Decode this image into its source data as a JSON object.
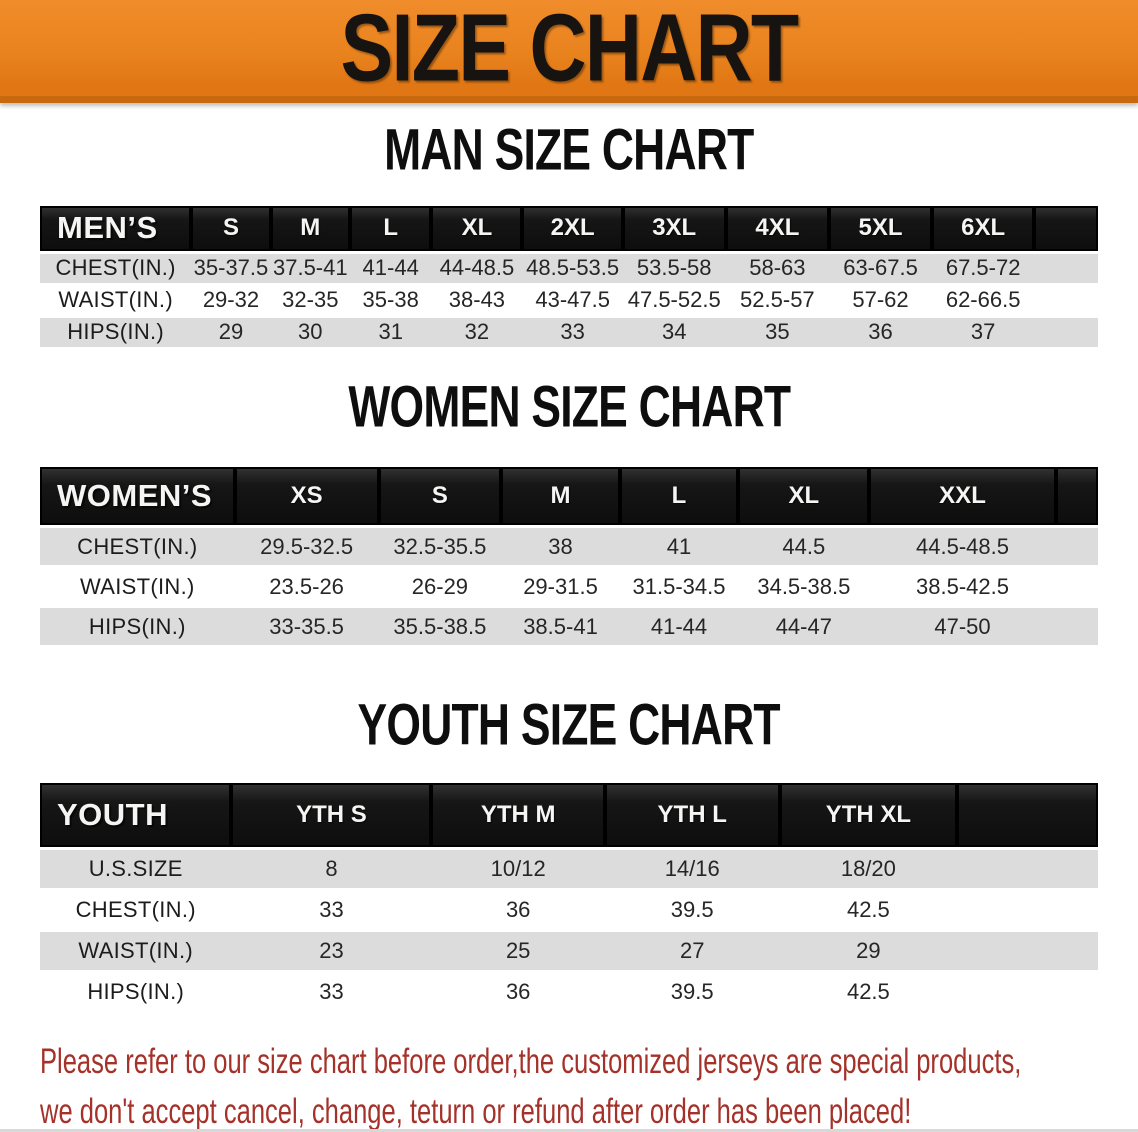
{
  "banner": {
    "title": "SIZE CHART"
  },
  "colors": {
    "accent_orange": "#E9831E",
    "accent_orange_dark": "#C8690F",
    "header_bar_black": "#151515",
    "row_stripe_gray": "#DCDCDC",
    "notice_red": "#A5322A"
  },
  "sections": [
    {
      "heading": "MAN SIZE CHART",
      "header_label": "MEN’S",
      "sizes": [
        "S",
        "M",
        "L",
        "XL",
        "2XL",
        "3XL",
        "4XL",
        "5XL",
        "6XL"
      ],
      "rows": [
        {
          "label": "CHEST(IN.)",
          "values": [
            "35-37.5",
            "37.5-41",
            "41-44",
            "44-48.5",
            "48.5-53.5",
            "53.5-58",
            "58-63",
            "63-67.5",
            "67.5-72"
          ]
        },
        {
          "label": "WAIST(IN.)",
          "values": [
            "29-32",
            "32-35",
            "35-38",
            "38-43",
            "43-47.5",
            "47.5-52.5",
            "52.5-57",
            "57-62",
            "62-66.5"
          ]
        },
        {
          "label": "HIPS(IN.)",
          "values": [
            "29",
            "30",
            "31",
            "32",
            "33",
            "34",
            "35",
            "36",
            "37"
          ]
        }
      ]
    },
    {
      "heading": "WOMEN SIZE CHART",
      "header_label": "WOMEN’S",
      "sizes": [
        "XS",
        "S",
        "M",
        "L",
        "XL",
        "XXL"
      ],
      "rows": [
        {
          "label": "CHEST(IN.)",
          "values": [
            "29.5-32.5",
            "32.5-35.5",
            "38",
            "41",
            "44.5",
            "44.5-48.5"
          ]
        },
        {
          "label": "WAIST(IN.)",
          "values": [
            "23.5-26",
            "26-29",
            "29-31.5",
            "31.5-34.5",
            "34.5-38.5",
            "38.5-42.5"
          ]
        },
        {
          "label": "HIPS(IN.)",
          "values": [
            "33-35.5",
            "35.5-38.5",
            "38.5-41",
            "41-44",
            "44-47",
            "47-50"
          ]
        }
      ]
    },
    {
      "heading": "YOUTH SIZE CHART",
      "header_label": "YOUTH",
      "sizes": [
        "YTH S",
        "YTH M",
        "YTH L",
        "YTH XL"
      ],
      "rows": [
        {
          "label": "U.S.SIZE",
          "values": [
            "8",
            "10/12",
            "14/16",
            "18/20"
          ]
        },
        {
          "label": "CHEST(IN.)",
          "values": [
            "33",
            "36",
            "39.5",
            "42.5"
          ]
        },
        {
          "label": "WAIST(IN.)",
          "values": [
            "23",
            "25",
            "27",
            "29"
          ]
        },
        {
          "label": "HIPS(IN.)",
          "values": [
            "33",
            "36",
            "39.5",
            "42.5"
          ]
        }
      ]
    }
  ],
  "footer": {
    "line1": "Please refer to our size chart before order,the customized jerseys are special products,",
    "line2": "we don't accept cancel, change, teturn or refund after order has been placed!"
  }
}
